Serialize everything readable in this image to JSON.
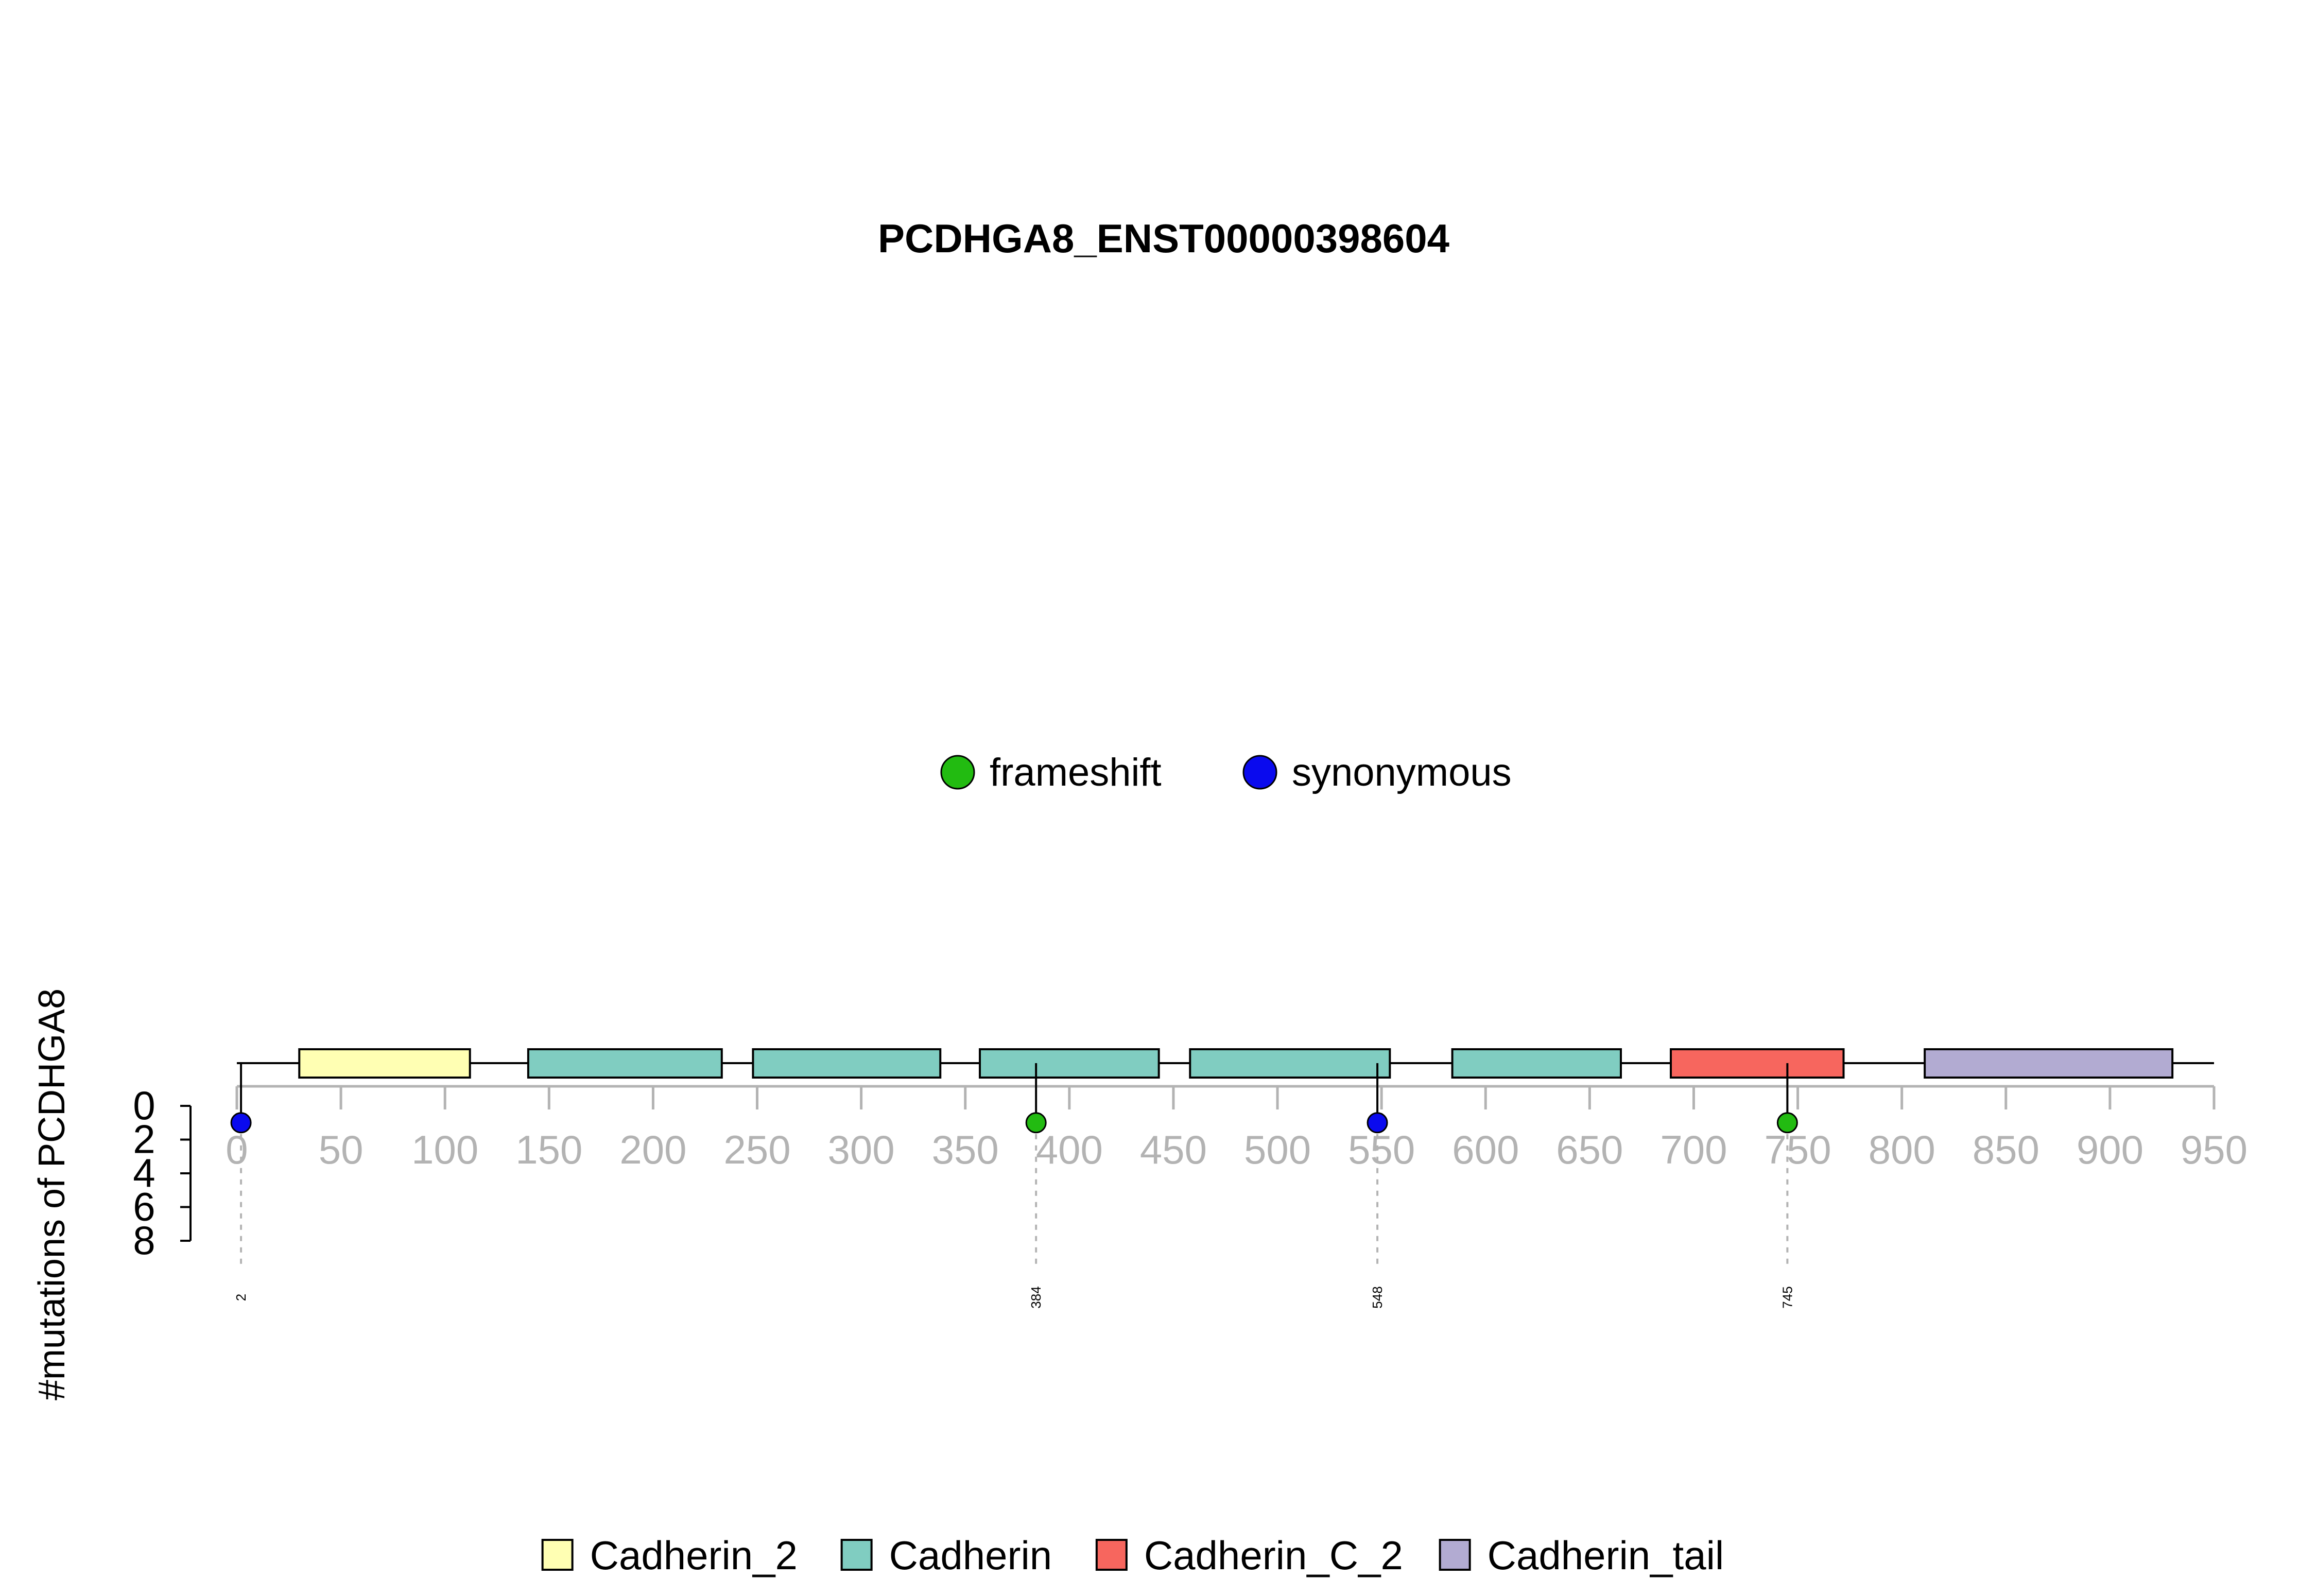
{
  "chart_data": {
    "type": "lollipop",
    "title": "PCDHGA8_ENST00000398604",
    "ylabel": "#mutations of PCDHGA8",
    "protein_length": 950,
    "x_ticks": [
      0,
      50,
      100,
      150,
      200,
      250,
      300,
      350,
      400,
      450,
      500,
      550,
      600,
      650,
      700,
      750,
      800,
      850,
      900,
      950
    ],
    "y_ticks": [
      0,
      2,
      4,
      6,
      8
    ],
    "ylim": [
      0,
      8
    ],
    "mutation_legend": [
      {
        "label": "frameshift",
        "color": "#22bb11"
      },
      {
        "label": "synonymous",
        "color": "#0a0aee"
      }
    ],
    "mutations": [
      {
        "position": 2,
        "count": 1,
        "type": "synonymous",
        "label": "2"
      },
      {
        "position": 384,
        "count": 1,
        "type": "frameshift",
        "label": "384"
      },
      {
        "position": 548,
        "count": 1,
        "type": "synonymous",
        "label": "548"
      },
      {
        "position": 745,
        "count": 1,
        "type": "frameshift",
        "label": "745"
      }
    ],
    "domains": [
      {
        "name": "Cadherin_2",
        "start": 30,
        "end": 112,
        "color": "#ffffb3"
      },
      {
        "name": "Cadherin",
        "start": 140,
        "end": 233,
        "color": "#80cdc1"
      },
      {
        "name": "Cadherin",
        "start": 248,
        "end": 338,
        "color": "#80cdc1"
      },
      {
        "name": "Cadherin",
        "start": 357,
        "end": 443,
        "color": "#80cdc1"
      },
      {
        "name": "Cadherin",
        "start": 458,
        "end": 554,
        "color": "#80cdc1"
      },
      {
        "name": "Cadherin",
        "start": 584,
        "end": 665,
        "color": "#80cdc1"
      },
      {
        "name": "Cadherin_C_2",
        "start": 689,
        "end": 772,
        "color": "#f7665e"
      },
      {
        "name": "Cadherin_tail",
        "start": 811,
        "end": 930,
        "color": "#b2abd2"
      }
    ],
    "domain_legend": [
      {
        "label": "Cadherin_2",
        "color": "#ffffb3"
      },
      {
        "label": "Cadherin",
        "color": "#80cdc1"
      },
      {
        "label": "Cadherin_C_2",
        "color": "#f7665e"
      },
      {
        "label": "Cadherin_tail",
        "color": "#b2abd2"
      }
    ],
    "grid": false
  }
}
